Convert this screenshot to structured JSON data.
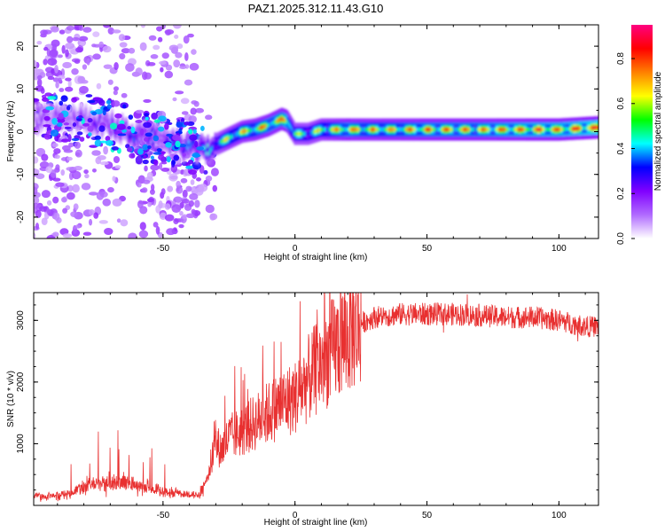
{
  "figure_title": "PAZ1.2025.312.11.43.G10",
  "chart_data": [
    {
      "type": "heatmap",
      "panel": "spectrogram",
      "xlabel": "Height of straight line (km)",
      "ylabel": "Frequency (Hz)",
      "xlim": [
        -99,
        115
      ],
      "ylim": [
        -25,
        25
      ],
      "xticks": [
        -50,
        0,
        50,
        100
      ],
      "xtick_labels": [
        "-50",
        "0",
        "50",
        "100"
      ],
      "yticks": [
        -20,
        -10,
        0,
        10,
        20
      ],
      "ytick_labels": [
        "-20",
        "-10",
        "0",
        "10",
        "20"
      ],
      "colorbar": {
        "label": "Normalized spectral amplitude",
        "range": [
          0,
          0.95
        ],
        "ticks": [
          0,
          0.2,
          0.4,
          0.6,
          0.8
        ],
        "tick_labels": [
          "0.0",
          "0.2",
          "0.4",
          "0.6",
          "0.8"
        ],
        "colormap": [
          "#ffffff",
          "#b06aff",
          "#8000ff",
          "#0000ff",
          "#00ffff",
          "#00ff00",
          "#ffff00",
          "#ff8000",
          "#ff0000",
          "#ff0080"
        ]
      },
      "ridge": {
        "description": "dominant frequency ridge vs height",
        "x": [
          -90,
          -80,
          -70,
          -60,
          -50,
          -45,
          -40,
          -35,
          -30,
          -25,
          -20,
          -15,
          -10,
          -5,
          -3,
          0,
          5,
          10,
          20,
          30,
          50,
          70,
          90,
          100,
          115
        ],
        "freq": [
          3,
          3,
          1.5,
          -1,
          -1.5,
          -3,
          -3.5,
          -4.5,
          -3,
          -1.5,
          0,
          0.5,
          1.5,
          3,
          2.5,
          -0.5,
          -0.5,
          0.5,
          0.5,
          0.5,
          0.5,
          0.5,
          0.5,
          0.5,
          1
        ],
        "amplitude": [
          0.2,
          0.22,
          0.3,
          0.35,
          0.3,
          0.4,
          0.42,
          0.45,
          0.55,
          0.7,
          0.72,
          0.75,
          0.8,
          0.8,
          0.85,
          0.6,
          0.6,
          0.7,
          0.8,
          0.75,
          0.8,
          0.8,
          0.85,
          0.85,
          0.9
        ]
      }
    },
    {
      "type": "line",
      "panel": "snr",
      "xlabel": "Height of straight line (km)",
      "ylabel": "SNR (10 * v/v)",
      "xlim": [
        -99,
        115
      ],
      "ylim": [
        0,
        3450
      ],
      "xticks": [
        -50,
        0,
        50,
        100
      ],
      "xtick_labels": [
        "-50",
        "0",
        "50",
        "100"
      ],
      "yticks": [
        1000,
        2000,
        3000
      ],
      "ytick_labels": [
        "1000",
        "2000",
        "3000"
      ],
      "color": "#e83030",
      "series": [
        {
          "name": "SNR",
          "x": [
            -99,
            -90,
            -85,
            -80,
            -75,
            -70,
            -65,
            -60,
            -55,
            -50,
            -45,
            -40,
            -36,
            -33,
            -30,
            -28,
            -25,
            -20,
            -15,
            -10,
            -5,
            0,
            5,
            10,
            15,
            20,
            25,
            30,
            40,
            50,
            60,
            70,
            80,
            90,
            100,
            105,
            110,
            115
          ],
          "y": [
            150,
            160,
            200,
            300,
            350,
            380,
            360,
            320,
            280,
            230,
            190,
            180,
            170,
            500,
            1000,
            900,
            1100,
            1200,
            1350,
            1500,
            1650,
            1750,
            2050,
            2300,
            2550,
            2750,
            2950,
            3050,
            3100,
            3100,
            3100,
            3080,
            3050,
            3050,
            3000,
            2950,
            2900,
            2900
          ]
        }
      ]
    }
  ]
}
